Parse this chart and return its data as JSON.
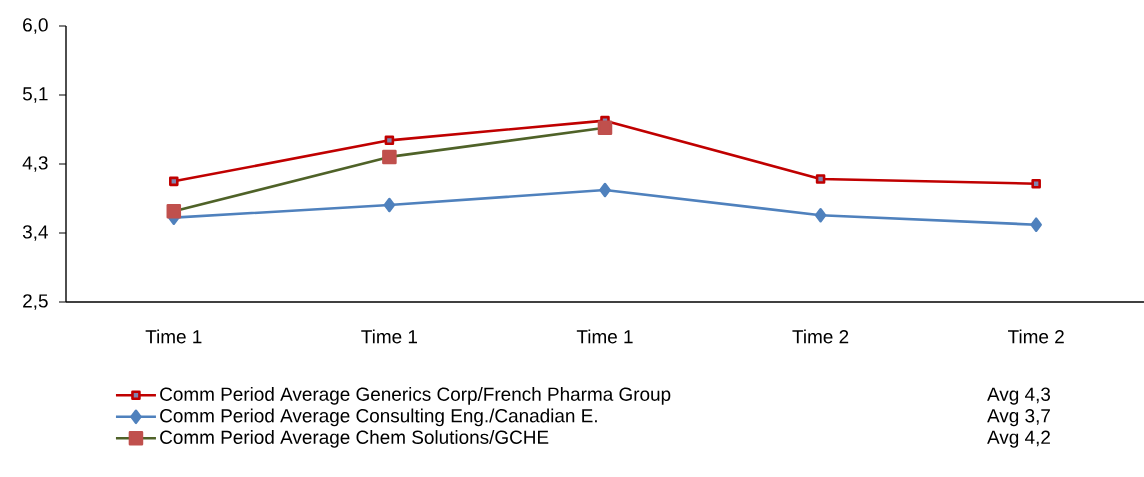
{
  "chart_data": {
    "type": "line",
    "categories": [
      "Time 1",
      "Time 1",
      "Time 1",
      "Time 2",
      "Time 2"
    ],
    "series": [
      {
        "name": "Comm Period Average Generics Corp/French Pharma Group",
        "color": "#c00000",
        "marker": "square",
        "values": [
          4.03,
          4.55,
          4.8,
          4.06,
          4.0
        ]
      },
      {
        "name": "Comm Period Average Consulting Eng./Canadian E.",
        "color": "#4f81bd",
        "marker": "diamond",
        "values": [
          3.57,
          3.73,
          3.92,
          3.6,
          3.48
        ]
      },
      {
        "name": "Comm Period Average Chem Solutions/GCHE",
        "color": "#4f6228",
        "marker": "square",
        "values": [
          3.65,
          4.34,
          4.71,
          null,
          null
        ]
      }
    ],
    "annotations": [
      "Avg 4,3",
      "Avg 3,7",
      "Avg 4,2"
    ],
    "ylim": [
      2.5,
      6.0
    ],
    "yticks": [
      {
        "value": 2.5,
        "label": "2,5"
      },
      {
        "value": 3.375,
        "label": "3,4"
      },
      {
        "value": 4.25,
        "label": "4,3"
      },
      {
        "value": 5.125,
        "label": "5,1"
      },
      {
        "value": 6.0,
        "label": "6,0"
      }
    ],
    "grid": false,
    "legend": "bottom",
    "line_style": "solid"
  }
}
